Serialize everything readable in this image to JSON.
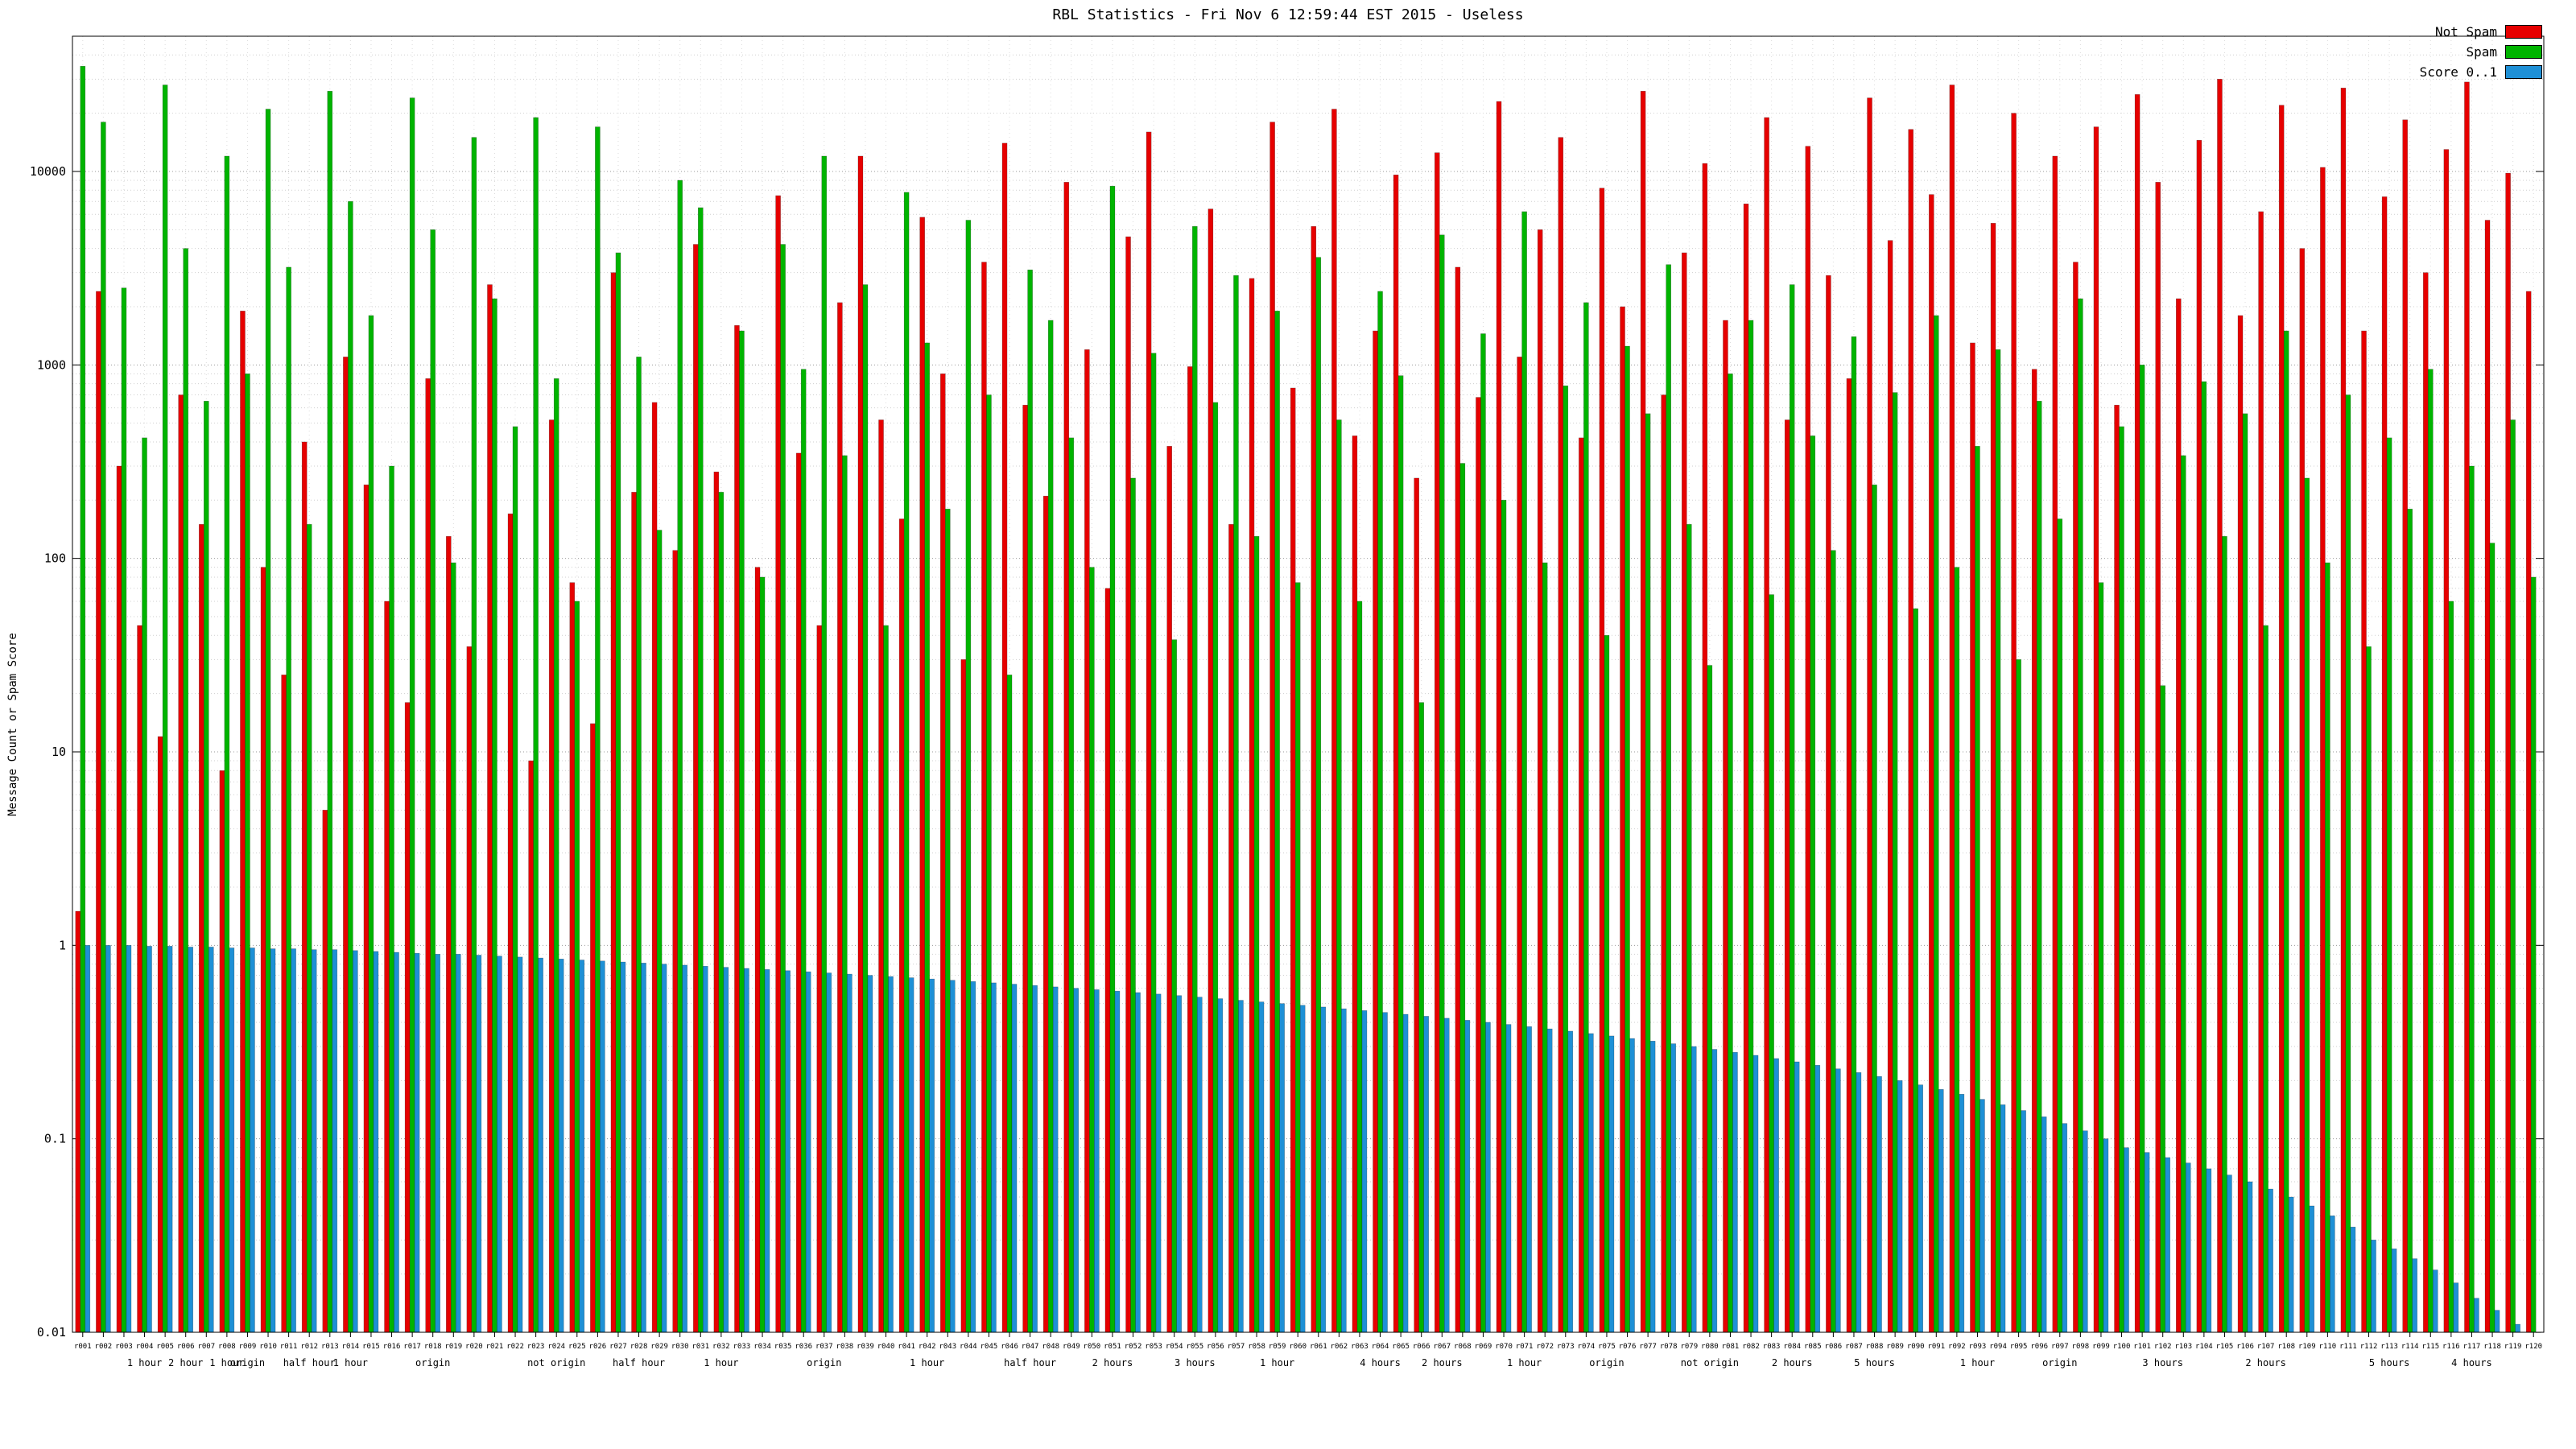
{
  "chart_data": {
    "type": "bar",
    "scale": "log",
    "title": "RBL Statistics - Fri Nov  6 12:59:44 EST 2015 - Useless",
    "ylabel": "Message Count or Spam Score",
    "ylim": [
      0.01,
      50000
    ],
    "yticks": [
      0.01,
      0.1,
      1,
      10,
      100,
      1000,
      10000
    ],
    "grid": true,
    "legend_position": "top-right",
    "series": [
      {
        "name": "Not Spam",
        "color": "#e60000",
        "values": [
          1.5,
          2400,
          300,
          45,
          12,
          700,
          150,
          8,
          1900,
          90,
          25,
          400,
          5,
          1100,
          240,
          60,
          18,
          850,
          130,
          35,
          2600,
          170,
          9,
          520,
          75,
          14,
          3000,
          220,
          640,
          110,
          4200,
          280,
          1600,
          90,
          7500,
          350,
          45,
          2100,
          12000,
          520,
          160,
          5800,
          900,
          30,
          3400,
          14000,
          620,
          210,
          8800,
          1200,
          70,
          4600,
          16000,
          380,
          980,
          6400,
          150,
          2800,
          18000,
          760,
          5200,
          21000,
          430,
          1500,
          9600,
          260,
          12500,
          3200,
          680,
          23000,
          1100,
          5000,
          15000,
          420,
          8200,
          2000,
          26000,
          700,
          3800,
          11000,
          1700,
          6800,
          19000,
          520,
          13500,
          2900,
          850,
          24000,
          4400,
          16500,
          7600,
          28000,
          1300,
          5400,
          20000,
          950,
          12000,
          3400,
          17000,
          620,
          25000,
          8800,
          2200,
          14500,
          30000,
          1800,
          6200,
          22000,
          4000,
          10500,
          27000,
          1500,
          7400,
          18500,
          3000,
          13000,
          29000,
          5600,
          9800,
          2400
        ]
      },
      {
        "name": "Spam",
        "color": "#00b400",
        "values": [
          35000,
          18000,
          2500,
          420,
          28000,
          4000,
          650,
          12000,
          900,
          21000,
          3200,
          150,
          26000,
          7000,
          1800,
          300,
          24000,
          5000,
          95,
          15000,
          2200,
          480,
          19000,
          850,
          60,
          17000,
          3800,
          1100,
          140,
          9000,
          6500,
          220,
          1500,
          80,
          4200,
          950,
          12000,
          340,
          2600,
          45,
          7800,
          1300,
          180,
          5600,
          700,
          25,
          3100,
          1700,
          420,
          90,
          8400,
          260,
          1150,
          38,
          5200,
          640,
          2900,
          130,
          1900,
          75,
          3600,
          520,
          60,
          2400,
          880,
          18,
          4700,
          310,
          1450,
          200,
          6200,
          95,
          780,
          2100,
          40,
          1250,
          560,
          3300,
          150,
          28,
          900,
          1700,
          65,
          2600,
          430,
          110,
          1400,
          240,
          720,
          55,
          1800,
          90,
          380,
          1200,
          30,
          650,
          160,
          2200,
          75,
          480,
          1000,
          22,
          340,
          820,
          130,
          560,
          45,
          1500,
          260,
          95,
          700,
          35,
          420,
          180,
          950,
          60,
          300,
          120,
          520,
          80
        ]
      },
      {
        "name": "Score 0..1",
        "color": "#1e90d6",
        "values": [
          1.0,
          1.0,
          1.0,
          0.99,
          0.99,
          0.98,
          0.98,
          0.97,
          0.97,
          0.96,
          0.96,
          0.95,
          0.95,
          0.94,
          0.93,
          0.92,
          0.91,
          0.9,
          0.9,
          0.89,
          0.88,
          0.87,
          0.86,
          0.85,
          0.84,
          0.83,
          0.82,
          0.81,
          0.8,
          0.79,
          0.78,
          0.77,
          0.76,
          0.75,
          0.74,
          0.73,
          0.72,
          0.71,
          0.7,
          0.69,
          0.68,
          0.67,
          0.66,
          0.65,
          0.64,
          0.63,
          0.62,
          0.61,
          0.6,
          0.59,
          0.58,
          0.57,
          0.56,
          0.55,
          0.54,
          0.53,
          0.52,
          0.51,
          0.5,
          0.49,
          0.48,
          0.47,
          0.46,
          0.45,
          0.44,
          0.43,
          0.42,
          0.41,
          0.4,
          0.39,
          0.38,
          0.37,
          0.36,
          0.35,
          0.34,
          0.33,
          0.32,
          0.31,
          0.3,
          0.29,
          0.28,
          0.27,
          0.26,
          0.25,
          0.24,
          0.23,
          0.22,
          0.21,
          0.2,
          0.19,
          0.18,
          0.17,
          0.16,
          0.15,
          0.14,
          0.13,
          0.12,
          0.11,
          0.1,
          0.09,
          0.085,
          0.08,
          0.075,
          0.07,
          0.065,
          0.06,
          0.055,
          0.05,
          0.045,
          0.04,
          0.035,
          0.03,
          0.027,
          0.024,
          0.021,
          0.018,
          0.015,
          0.013,
          0.011,
          0.01
        ]
      }
    ],
    "categories": [
      "r001",
      "r002",
      "r003",
      "r004",
      "r005",
      "r006",
      "r007",
      "r008",
      "r009",
      "r010",
      "r011",
      "r012",
      "r013",
      "r014",
      "r015",
      "r016",
      "r017",
      "r018",
      "r019",
      "r020",
      "r021",
      "r022",
      "r023",
      "r024",
      "r025",
      "r026",
      "r027",
      "r028",
      "r029",
      "r030",
      "r031",
      "r032",
      "r033",
      "r034",
      "r035",
      "r036",
      "r037",
      "r038",
      "r039",
      "r040",
      "r041",
      "r042",
      "r043",
      "r044",
      "r045",
      "r046",
      "r047",
      "r048",
      "r049",
      "r050",
      "r051",
      "r052",
      "r053",
      "r054",
      "r055",
      "r056",
      "r057",
      "r058",
      "r059",
      "r060",
      "r061",
      "r062",
      "r063",
      "r064",
      "r065",
      "r066",
      "r067",
      "r068",
      "r069",
      "r070",
      "r071",
      "r072",
      "r073",
      "r074",
      "r075",
      "r076",
      "r077",
      "r078",
      "r079",
      "r080",
      "r081",
      "r082",
      "r083",
      "r084",
      "r085",
      "r086",
      "r087",
      "r088",
      "r089",
      "r090",
      "r091",
      "r092",
      "r093",
      "r094",
      "r095",
      "r096",
      "r097",
      "r098",
      "r099",
      "r100",
      "r101",
      "r102",
      "r103",
      "r104",
      "r105",
      "r106",
      "r107",
      "r108",
      "r109",
      "r110",
      "r111",
      "r112",
      "r113",
      "r114",
      "r115",
      "r116",
      "r117",
      "r118",
      "r119",
      "r120"
    ],
    "sub_labels": [
      {
        "i": 3,
        "t": "1 hour"
      },
      {
        "i": 5,
        "t": "2 hour"
      },
      {
        "i": 7,
        "t": "1 hour"
      },
      {
        "i": 8,
        "t": "origin"
      },
      {
        "i": 11,
        "t": "half hour"
      },
      {
        "i": 13,
        "t": "1 hour"
      },
      {
        "i": 17,
        "t": "origin"
      },
      {
        "i": 23,
        "t": "not origin"
      },
      {
        "i": 27,
        "t": "half hour"
      },
      {
        "i": 31,
        "t": "1 hour"
      },
      {
        "i": 36,
        "t": "origin"
      },
      {
        "i": 41,
        "t": "1 hour"
      },
      {
        "i": 46,
        "t": "half hour"
      },
      {
        "i": 50,
        "t": "2 hours"
      },
      {
        "i": 54,
        "t": "3 hours"
      },
      {
        "i": 58,
        "t": "1 hour"
      },
      {
        "i": 63,
        "t": "4 hours"
      },
      {
        "i": 66,
        "t": "2 hours"
      },
      {
        "i": 70,
        "t": "1 hour"
      },
      {
        "i": 74,
        "t": "origin"
      },
      {
        "i": 79,
        "t": "not origin"
      },
      {
        "i": 83,
        "t": "2 hours"
      },
      {
        "i": 87,
        "t": "5 hours"
      },
      {
        "i": 92,
        "t": "1 hour"
      },
      {
        "i": 96,
        "t": "origin"
      },
      {
        "i": 101,
        "t": "3 hours"
      },
      {
        "i": 106,
        "t": "2 hours"
      },
      {
        "i": 112,
        "t": "5 hours"
      },
      {
        "i": 116,
        "t": "4 hours"
      }
    ]
  }
}
